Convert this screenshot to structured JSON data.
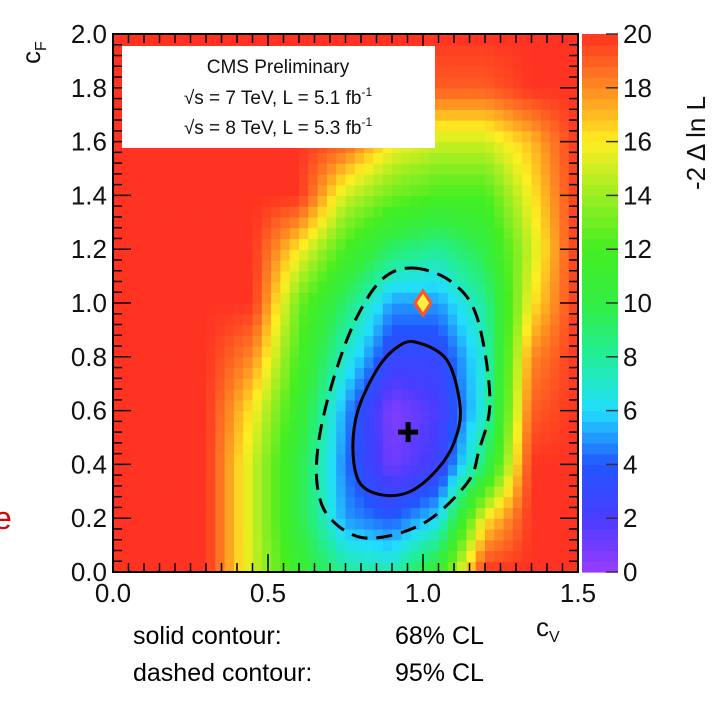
{
  "chart_data": {
    "type": "heatmap",
    "xlabel": "c_V",
    "ylabel": "c_F",
    "zlabel": "-2 Δ ln L",
    "xlim": [
      0,
      1.5
    ],
    "ylim": [
      0,
      2.0
    ],
    "zlim": [
      0,
      20
    ],
    "x_ticks": [
      "0.0",
      "0.5",
      "1.0",
      "1.5"
    ],
    "y_ticks": [
      "0.0",
      "0.2",
      "0.4",
      "0.6",
      "0.8",
      "1.0",
      "1.2",
      "1.4",
      "1.6",
      "1.8",
      "2.0"
    ],
    "z_ticks": [
      "0",
      "2",
      "4",
      "6",
      "8",
      "10",
      "12",
      "14",
      "16",
      "18",
      "20"
    ],
    "grid": false,
    "grid_x": [
      0,
      0.15,
      0.3,
      0.45,
      0.6,
      0.75,
      0.9,
      1.05,
      1.2,
      1.35,
      1.5
    ],
    "grid_y": [
      0,
      0.2,
      0.4,
      0.6,
      0.8,
      1.0,
      1.2,
      1.4,
      1.6,
      1.8,
      2.0
    ],
    "z": [
      [
        20,
        20,
        20,
        15,
        11,
        8,
        7.5,
        11,
        20,
        20,
        20
      ],
      [
        20,
        20,
        20,
        15,
        10,
        5,
        4,
        6,
        16,
        20,
        20
      ],
      [
        20,
        20,
        20,
        15,
        10,
        4.5,
        1,
        2.5,
        9,
        20,
        20
      ],
      [
        20,
        20,
        20,
        16,
        11,
        5,
        0.5,
        2,
        7,
        19,
        20
      ],
      [
        20,
        20,
        20,
        18,
        12,
        7,
        3,
        3,
        7,
        18,
        20
      ],
      [
        20,
        20,
        20,
        20,
        13,
        9,
        5,
        5,
        8,
        16,
        20
      ],
      [
        20,
        20,
        20,
        20,
        16,
        12,
        9,
        8,
        10,
        15,
        20
      ],
      [
        20,
        20,
        20,
        20,
        20,
        15,
        13,
        12,
        12,
        16,
        20
      ],
      [
        20,
        20,
        20,
        20,
        20,
        19,
        16,
        15,
        15,
        17,
        20
      ],
      [
        20,
        20,
        20,
        20,
        20,
        20,
        20,
        19,
        19,
        20,
        20
      ],
      [
        20,
        20,
        20,
        20,
        20,
        20,
        20,
        20,
        20,
        20,
        20
      ]
    ],
    "colormap": [
      [
        0,
        "#9a3cff"
      ],
      [
        2,
        "#4a3cff"
      ],
      [
        4,
        "#2255ff"
      ],
      [
        6,
        "#22ddff"
      ],
      [
        8,
        "#22ee99"
      ],
      [
        10,
        "#33ee44"
      ],
      [
        12,
        "#44ee22"
      ],
      [
        14,
        "#99ee22"
      ],
      [
        16,
        "#ffee22"
      ],
      [
        18,
        "#ff8a22"
      ],
      [
        20,
        "#ff3322"
      ]
    ],
    "best_fit": {
      "x": 0.952,
      "y": 0.52,
      "marker": "cross"
    },
    "sm_point": {
      "x": 1.0,
      "y": 1.0,
      "marker": "diamond",
      "fill": "#ffee44",
      "stroke": "#ff5522"
    },
    "contours": [
      {
        "style": "solid",
        "level": "68% CL",
        "points": [
          [
            0.974,
            0.855
          ],
          [
            1.077,
            0.788
          ],
          [
            1.12,
            0.61
          ],
          [
            1.1,
            0.48
          ],
          [
            1.045,
            0.38
          ],
          [
            0.96,
            0.3
          ],
          [
            0.871,
            0.286
          ],
          [
            0.797,
            0.33
          ],
          [
            0.774,
            0.453
          ],
          [
            0.79,
            0.6
          ],
          [
            0.85,
            0.75
          ],
          [
            0.91,
            0.83
          ]
        ]
      },
      {
        "style": "dashed",
        "level": "95% CL",
        "points": [
          [
            0.968,
            1.13
          ],
          [
            1.09,
            1.08
          ],
          [
            1.174,
            0.948
          ],
          [
            1.216,
            0.64
          ],
          [
            1.18,
            0.45
          ],
          [
            1.142,
            0.33
          ],
          [
            1.0,
            0.18
          ],
          [
            0.819,
            0.126
          ],
          [
            0.7,
            0.2
          ],
          [
            0.658,
            0.33
          ],
          [
            0.668,
            0.517
          ],
          [
            0.72,
            0.75
          ],
          [
            0.787,
            0.948
          ],
          [
            0.87,
            1.09
          ]
        ]
      }
    ],
    "legend": {
      "placement": "top-left",
      "title": "CMS Preliminary",
      "line1": "√s = 7 TeV, L = 5.1 fb",
      "line1_sup": "-1",
      "line2": "√s = 8 TeV, L = 5.3 fb",
      "line2_sup": "-1"
    }
  },
  "notes": {
    "solid_label": "solid contour:",
    "solid_value": "68% CL",
    "dashed_label": "dashed contour:",
    "dashed_value": "95% CL"
  },
  "cut_off_text": "e"
}
